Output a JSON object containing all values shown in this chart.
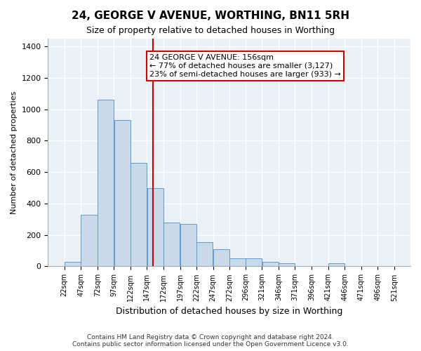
{
  "title": "24, GEORGE V AVENUE, WORTHING, BN11 5RH",
  "subtitle": "Size of property relative to detached houses in Worthing",
  "xlabel": "Distribution of detached houses by size in Worthing",
  "ylabel": "Number of detached properties",
  "bar_color": "#c9d9e8",
  "bar_edge_color": "#5b9bd5",
  "background_color": "#eaf0f8",
  "grid_color": "#ffffff",
  "vline_x": 156,
  "vline_color": "#cc0000",
  "annotation_text": "24 GEORGE V AVENUE: 156sqm\n← 77% of detached houses are smaller (3,127)\n23% of semi-detached houses are larger (933) →",
  "annotation_box_color": "#ffffff",
  "annotation_box_edge": "#cc0000",
  "footnote": "Contains HM Land Registry data © Crown copyright and database right 2024.\nContains public sector information licensed under the Open Government Licence v3.0.",
  "bins": [
    22,
    47,
    72,
    97,
    122,
    147,
    172,
    197,
    222,
    247,
    272,
    296,
    321,
    346,
    371,
    396,
    421,
    446,
    471,
    496,
    521
  ],
  "counts": [
    30,
    330,
    1060,
    930,
    660,
    500,
    280,
    270,
    155,
    110,
    50,
    50,
    30,
    20,
    0,
    0,
    20,
    0,
    0,
    0
  ],
  "ylim": [
    0,
    1450
  ],
  "yticks": [
    0,
    200,
    400,
    600,
    800,
    1000,
    1200,
    1400
  ]
}
